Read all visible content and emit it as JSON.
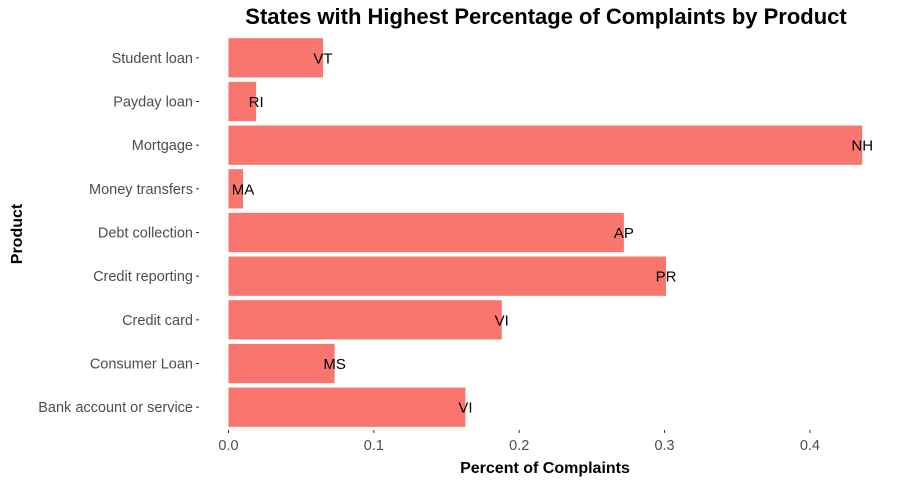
{
  "colors": {
    "bar": "#f8766d",
    "text": "#000000",
    "tick_text": "#4d4d4d",
    "background": "#ffffff"
  },
  "chart_data": {
    "type": "bar",
    "orientation": "horizontal",
    "title": "States with Highest Percentage of Complaints by Product",
    "xlabel": "Percent of Complaints",
    "ylabel": "Product",
    "xlim": [
      0,
      0.44
    ],
    "xticks": [
      0.0,
      0.1,
      0.2,
      0.3,
      0.4
    ],
    "xtick_labels": [
      "0.0",
      "0.1",
      "0.2",
      "0.3",
      "0.4"
    ],
    "grid": false,
    "legend": "none",
    "categories": [
      "Bank account or service",
      "Consumer Loan",
      "Credit card",
      "Credit reporting",
      "Debt collection",
      "Money transfers",
      "Mortgage",
      "Payday loan",
      "Student loan"
    ],
    "values": [
      0.163,
      0.073,
      0.188,
      0.301,
      0.272,
      0.01,
      0.436,
      0.019,
      0.065
    ],
    "labels": [
      "VI",
      "MS",
      "VI",
      "PR",
      "AP",
      "MA",
      "NH",
      "RI",
      "VT"
    ]
  }
}
